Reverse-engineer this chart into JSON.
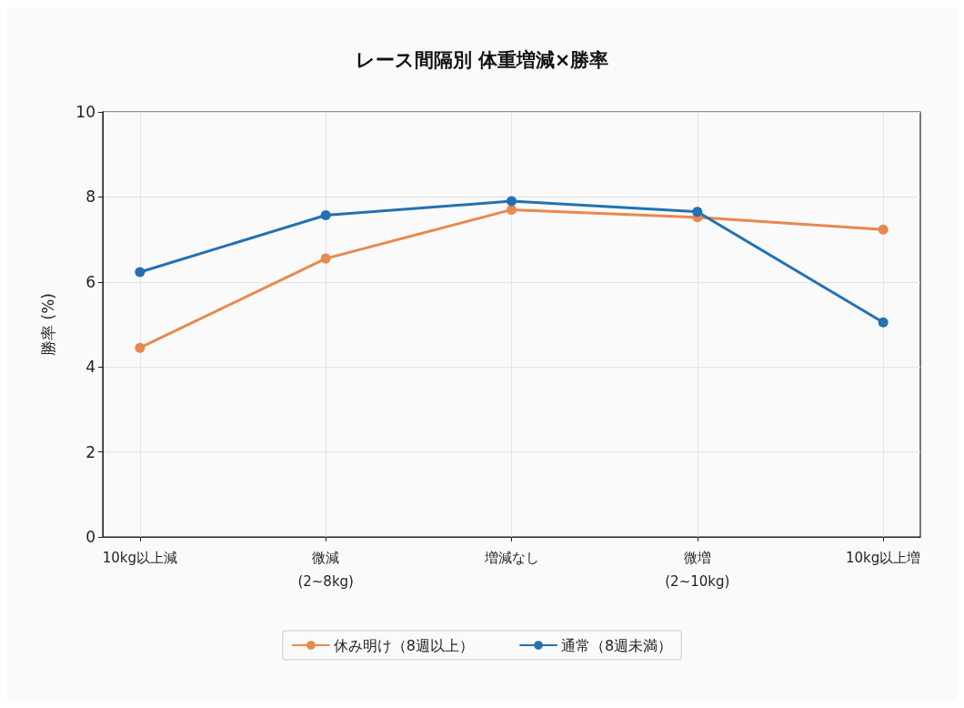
{
  "chart_data": {
    "type": "line",
    "title": "レース間隔別 体重増減×勝率",
    "ylabel": "勝率 (%)",
    "categories": [
      "10kg以上減",
      "微減\n(2~8kg)",
      "増減なし",
      "微増\n(2~10kg)",
      "10kg以上増"
    ],
    "series": [
      {
        "name": "休み明け（8週以上）",
        "color": "#e8894e",
        "values": [
          4.45,
          6.55,
          7.7,
          7.52,
          7.23
        ]
      },
      {
        "name": "通常（8週未満）",
        "color": "#2271b3",
        "values": [
          6.23,
          7.57,
          7.9,
          7.65,
          5.05
        ]
      }
    ],
    "ylim": [
      0,
      10
    ],
    "yticks": [
      0,
      2,
      4,
      6,
      8,
      10
    ],
    "grid": true,
    "legend": "bottom",
    "marker": "circle",
    "line_style": "solid"
  }
}
